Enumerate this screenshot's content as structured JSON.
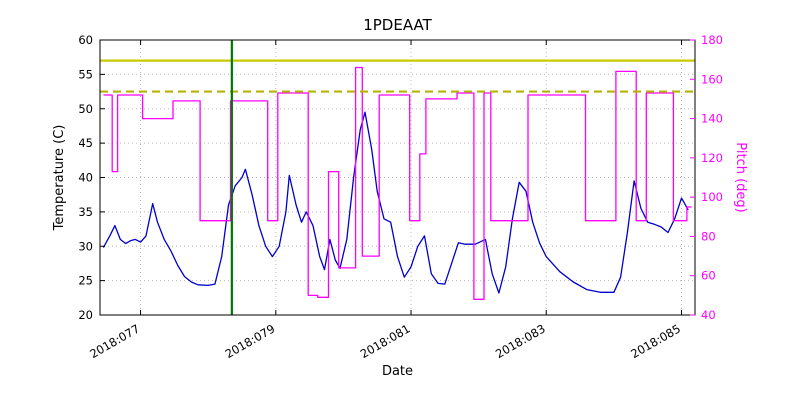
{
  "chart_data": {
    "type": "line",
    "title": "1PDEAAT",
    "xlabel": "Date",
    "ylabel": "Temperature (C)",
    "ylabel_right": "Pitch (deg)",
    "grid": true,
    "legend": "none",
    "xlim": [
      76.4,
      85.2
    ],
    "ylim_left": [
      20,
      60
    ],
    "ylim_right": [
      40,
      180
    ],
    "x_ticks": [
      {
        "value": 77,
        "label": "2018:077"
      },
      {
        "value": 79,
        "label": "2018:079"
      },
      {
        "value": 81,
        "label": "2018:081"
      },
      {
        "value": 83,
        "label": "2018:083"
      },
      {
        "value": 85,
        "label": "2018:085"
      }
    ],
    "y_ticks_left": [
      20,
      25,
      30,
      35,
      40,
      45,
      50,
      55,
      60
    ],
    "y_ticks_right": [
      40,
      60,
      80,
      100,
      120,
      140,
      160,
      180
    ],
    "colors": {
      "temperature": "#0000cc",
      "pitch": "#ff00ff",
      "limit_solid": "#c8c800",
      "limit_dashed": "#b4b400",
      "event_marker": "#007700",
      "grid": "#bbbbbb",
      "right_axis_text": "#ff00ff"
    },
    "reference_lines": [
      {
        "name": "upper-limit-line",
        "orientation": "horizontal",
        "axis": "left",
        "value": 57,
        "style": "solid",
        "color": "#c8c800"
      },
      {
        "name": "caution-limit-line",
        "orientation": "horizontal",
        "axis": "left",
        "value": 52.5,
        "style": "dashed",
        "color": "#b4b400"
      },
      {
        "name": "event-marker-line",
        "orientation": "vertical",
        "value": 78.35,
        "style": "solid",
        "color": "#007700"
      }
    ],
    "series": [
      {
        "name": "temperature",
        "axis": "left",
        "color": "#0000cc",
        "x": [
          76.45,
          76.55,
          76.62,
          76.7,
          76.78,
          76.85,
          76.92,
          77.0,
          77.08,
          77.18,
          77.25,
          77.35,
          77.45,
          77.55,
          77.65,
          77.75,
          77.85,
          78.0,
          78.1,
          78.2,
          78.3,
          78.4,
          78.5,
          78.55,
          78.65,
          78.75,
          78.85,
          78.95,
          79.05,
          79.15,
          79.2,
          79.3,
          79.38,
          79.45,
          79.55,
          79.65,
          79.72,
          79.8,
          79.88,
          79.95,
          80.05,
          80.15,
          80.25,
          80.32,
          80.42,
          80.5,
          80.6,
          80.7,
          80.8,
          80.9,
          81.0,
          81.1,
          81.2,
          81.3,
          81.4,
          81.5,
          81.6,
          81.7,
          81.8,
          81.95,
          82.1,
          82.2,
          82.3,
          82.4,
          82.5,
          82.6,
          82.7,
          82.8,
          82.9,
          83.0,
          83.2,
          83.4,
          83.6,
          83.8,
          84.0,
          84.1,
          84.2,
          84.3,
          84.4,
          84.5,
          84.6,
          84.7,
          84.8,
          84.9,
          85.0,
          85.1
        ],
        "y": [
          29.8,
          31.6,
          33.0,
          31.0,
          30.4,
          30.8,
          31.0,
          30.6,
          31.5,
          36.2,
          33.5,
          31.0,
          29.3,
          27.2,
          25.6,
          24.8,
          24.4,
          24.3,
          24.5,
          28.5,
          36.0,
          38.8,
          40.0,
          41.2,
          37.5,
          33.0,
          30.0,
          28.5,
          30.0,
          35.0,
          40.3,
          36.0,
          33.5,
          35.0,
          33.0,
          28.5,
          26.6,
          31.0,
          28.0,
          26.8,
          31.0,
          40.0,
          47.0,
          49.5,
          44.0,
          38.0,
          34.0,
          33.5,
          28.5,
          25.5,
          27.0,
          30.0,
          31.5,
          26.0,
          24.6,
          24.5,
          27.5,
          30.5,
          30.3,
          30.3,
          31.0,
          26.0,
          23.2,
          27.0,
          34.0,
          39.3,
          38.0,
          33.5,
          30.5,
          28.5,
          26.3,
          24.8,
          23.7,
          23.3,
          23.3,
          25.5,
          32.0,
          39.5,
          35.5,
          33.5,
          33.2,
          32.8,
          32.0,
          34.0,
          37.0,
          35.3
        ]
      },
      {
        "name": "pitch",
        "axis": "right",
        "color": "#ff00ff",
        "x": [
          76.45,
          76.58,
          76.58,
          76.66,
          76.66,
          77.03,
          77.03,
          77.48,
          77.48,
          77.88,
          77.88,
          78.33,
          78.33,
          78.88,
          78.88,
          79.03,
          79.03,
          79.48,
          79.48,
          79.62,
          79.62,
          79.78,
          79.78,
          79.93,
          79.93,
          80.18,
          80.18,
          80.28,
          80.28,
          80.53,
          80.53,
          80.98,
          80.98,
          81.13,
          81.13,
          81.22,
          81.22,
          81.68,
          81.68,
          81.93,
          81.93,
          82.08,
          82.08,
          82.18,
          82.18,
          82.73,
          82.73,
          83.58,
          83.58,
          84.03,
          84.03,
          84.33,
          84.33,
          84.48,
          84.48,
          84.88,
          84.88,
          85.08,
          85.08,
          85.15
        ],
        "y": [
          152,
          152,
          113,
          113,
          152,
          152,
          140,
          140,
          149,
          149,
          88,
          88,
          149,
          149,
          88,
          88,
          153,
          153,
          50,
          50,
          49,
          49,
          113,
          113,
          64,
          64,
          166,
          166,
          70,
          70,
          152,
          152,
          88,
          88,
          122,
          122,
          150,
          150,
          153,
          153,
          48,
          48,
          153,
          153,
          88,
          88,
          152,
          152,
          88,
          88,
          164,
          164,
          88,
          88,
          153,
          153,
          88,
          88,
          95,
          95
        ]
      }
    ]
  }
}
